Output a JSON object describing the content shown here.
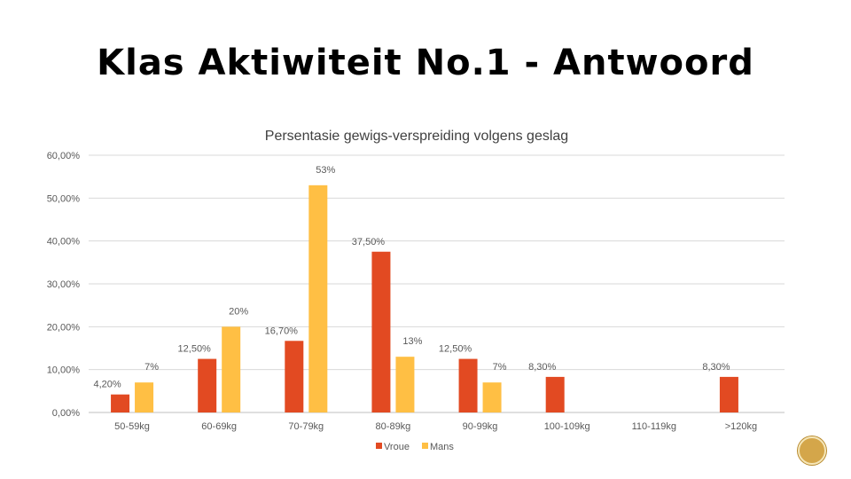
{
  "slide": {
    "title": "Klas Aktiwiteit No.1 - Antwoord"
  },
  "chart_data": {
    "type": "bar",
    "title": "Persentasie gewigs-verspreiding volgens geslag",
    "categories": [
      "50-59kg",
      "60-69kg",
      "70-79kg",
      "80-89kg",
      "90-99kg",
      "100-109kg",
      "110-119kg",
      ">120kg"
    ],
    "series": [
      {
        "name": "Vroue",
        "color": "#E24A22",
        "values": [
          4.2,
          12.5,
          16.7,
          37.5,
          12.5,
          8.3,
          null,
          8.3
        ],
        "labels": [
          "4,20%",
          "12,50%",
          "16,70%",
          "37,50%",
          "12,50%",
          "8,30%",
          "",
          "8,30%"
        ]
      },
      {
        "name": "Mans",
        "color": "#FFBF44",
        "values": [
          7,
          20,
          53,
          13,
          7,
          null,
          null,
          null
        ],
        "labels": [
          "7%",
          "20%",
          "53%",
          "13%",
          "7%",
          "",
          "",
          ""
        ]
      }
    ],
    "ylim": [
      0,
      60
    ],
    "yticks": [
      0,
      10,
      20,
      30,
      40,
      50,
      60
    ],
    "ytick_labels": [
      "0,00%",
      "10,00%",
      "20,00%",
      "30,00%",
      "40,00%",
      "50,00%",
      "60,00%"
    ],
    "grid": true,
    "legend_position": "bottom",
    "xlabel": "",
    "ylabel": ""
  },
  "decor": {
    "badge_icon": "gold-seal-icon"
  }
}
